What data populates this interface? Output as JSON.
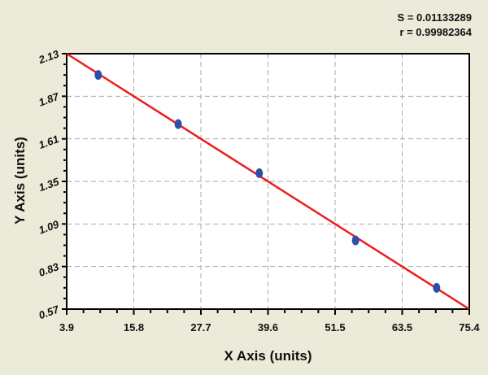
{
  "chart_data": {
    "type": "scatter",
    "title": "",
    "xlabel": "X Axis (units)",
    "ylabel": "Y Axis (units)",
    "xlim": [
      3.9,
      75.4
    ],
    "ylim": [
      0.57,
      2.13
    ],
    "xticks": [
      "3.9",
      "15.8",
      "27.7",
      "39.6",
      "51.5",
      "63.5",
      "75.4"
    ],
    "yticks": [
      "0.57",
      "0.83",
      "1.09",
      "1.35",
      "1.61",
      "1.87",
      "2.13"
    ],
    "grid": true,
    "points": {
      "x": [
        9.5,
        23.7,
        38.1,
        55.2,
        69.6
      ],
      "y": [
        2.0,
        1.7,
        1.4,
        0.99,
        0.7
      ]
    },
    "fit_line": {
      "x": [
        3.9,
        75.4
      ],
      "y": [
        2.13,
        0.57
      ]
    },
    "annotations": {
      "s": "S = 0.01133289",
      "r": "r = 0.99982364"
    },
    "colors": {
      "points": "#2e4fa8",
      "line": "#ee1c1c",
      "background": "#ecead8",
      "plot": "#ffffff",
      "grid": "#aaaaaa"
    }
  }
}
